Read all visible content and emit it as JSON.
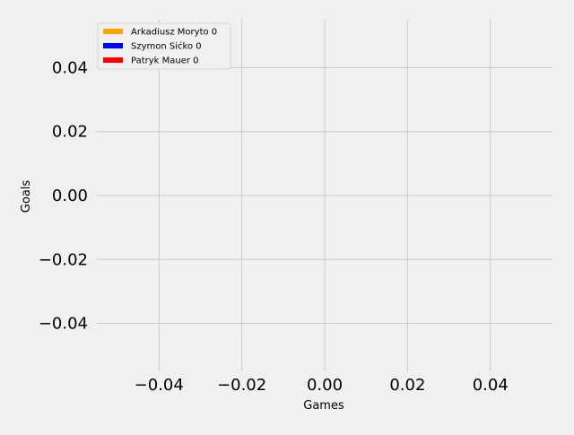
{
  "chart_data": {
    "type": "line",
    "title": "",
    "xlabel": "Games",
    "ylabel": "Goals",
    "xlim": [
      -0.055,
      0.055
    ],
    "ylim": [
      -0.055,
      0.055
    ],
    "x_ticks": [
      -0.04,
      -0.02,
      0.0,
      0.02,
      0.04
    ],
    "x_tick_labels": [
      "−0.04",
      "−0.02",
      "0.00",
      "0.02",
      "0.04"
    ],
    "y_ticks": [
      0.04,
      0.02,
      0.0,
      -0.02,
      -0.04
    ],
    "y_tick_labels": [
      "0.04",
      "0.02",
      "0.00",
      "−0.02",
      "−0.04"
    ],
    "grid": true,
    "legend_position": "top-left",
    "series": [
      {
        "name": "Arkadiusz Moryto 0",
        "color": "#ffa500",
        "x": [],
        "y": []
      },
      {
        "name": "Szymon Sićko 0",
        "color": "#0000ff",
        "x": [],
        "y": []
      },
      {
        "name": "Patryk Mauer 0",
        "color": "#ff0000",
        "x": [],
        "y": []
      }
    ]
  }
}
